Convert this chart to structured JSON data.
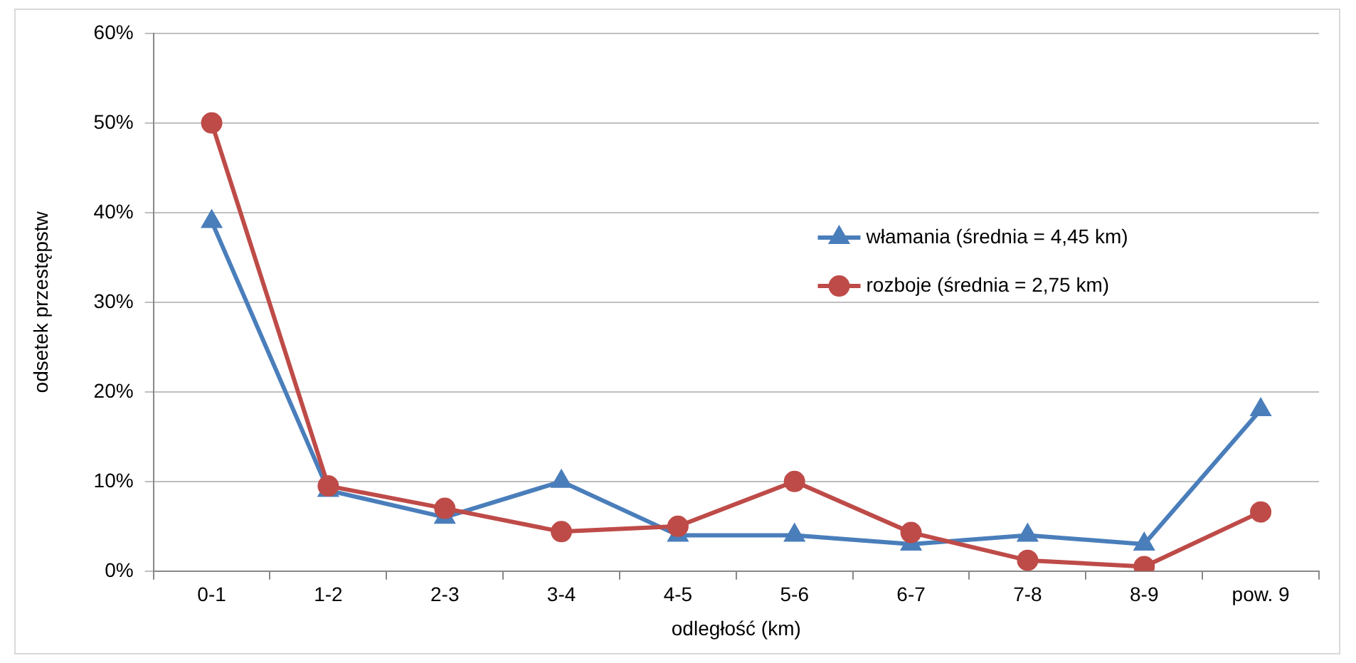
{
  "chart_data": {
    "type": "line",
    "xlabel": "odległość (km)",
    "ylabel": "odsetek przestępstw",
    "categories": [
      "0-1",
      "1-2",
      "2-3",
      "3-4",
      "4-5",
      "5-6",
      "6-7",
      "7-8",
      "8-9",
      "pow. 9"
    ],
    "series": [
      {
        "name": "włamania (średnia = 4,45 km)",
        "color": "#4a7ebb",
        "marker": "triangle",
        "values": [
          39,
          9,
          6,
          10,
          4,
          4,
          3,
          4,
          3,
          18
        ]
      },
      {
        "name": "rozboje (średnia = 2,75 km)",
        "color": "#be4b48",
        "marker": "circle",
        "values": [
          50,
          9.5,
          7,
          4.4,
          5,
          10,
          4.3,
          1.2,
          0.5,
          6.6
        ]
      }
    ],
    "ylim": [
      0,
      60
    ],
    "yticks": [
      {
        "value": 0,
        "label": "0%"
      },
      {
        "value": 10,
        "label": "10%"
      },
      {
        "value": 20,
        "label": "20%"
      },
      {
        "value": 30,
        "label": "30%"
      },
      {
        "value": 40,
        "label": "40%"
      },
      {
        "value": 50,
        "label": "50%"
      },
      {
        "value": 60,
        "label": "60%"
      }
    ],
    "grid": "y",
    "legend": "right",
    "line_style": "solid"
  }
}
